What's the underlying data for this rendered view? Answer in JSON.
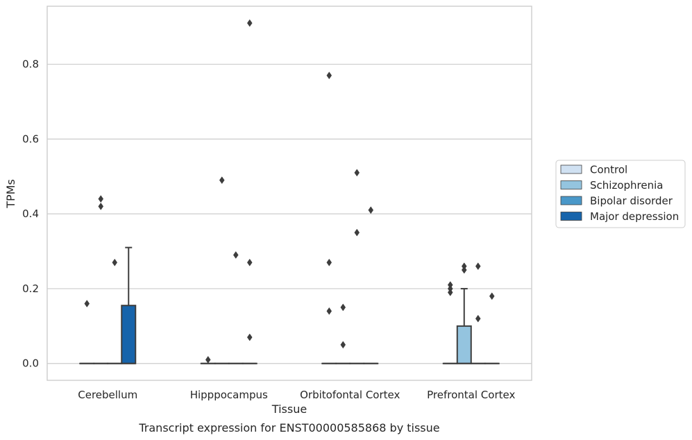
{
  "chart_data": {
    "type": "box",
    "categories": [
      "Cerebellum",
      "Hipppocampus",
      "Orbitofontal Cortex",
      "Prefrontal Cortex"
    ],
    "xlabel": "Tissue",
    "ylabel": "TPMs",
    "caption": "Transcript expression for ENST00000585868 by tissue",
    "ylim": [
      -0.045,
      0.955
    ],
    "yticks": [
      0.0,
      0.2,
      0.4,
      0.6,
      0.8
    ],
    "ytick_labels": [
      "0.0",
      "0.2",
      "0.4",
      "0.6",
      "0.8"
    ],
    "grid": "horizontal",
    "legend_placement": "right",
    "series": [
      {
        "name": "Control",
        "color": "#d0e1f2",
        "boxes": [
          {
            "q1": 0,
            "median": 0,
            "q3": 0,
            "whisker_low": 0,
            "whisker_high": 0,
            "outliers": [
              0.16
            ]
          },
          {
            "q1": 0,
            "median": 0,
            "q3": 0,
            "whisker_low": 0,
            "whisker_high": 0,
            "outliers": [
              0.01
            ]
          },
          {
            "q1": 0,
            "median": 0,
            "q3": 0,
            "whisker_low": 0,
            "whisker_high": 0,
            "outliers": [
              0.77,
              0.27,
              0.14
            ]
          },
          {
            "q1": 0,
            "median": 0,
            "q3": 0,
            "whisker_low": 0,
            "whisker_high": 0,
            "outliers": [
              0.21,
              0.2,
              0.19
            ]
          }
        ]
      },
      {
        "name": "Schizophrenia",
        "color": "#94c4df",
        "boxes": [
          {
            "q1": 0,
            "median": 0,
            "q3": 0,
            "whisker_low": 0,
            "whisker_high": 0,
            "outliers": [
              0.44,
              0.42
            ]
          },
          {
            "q1": 0,
            "median": 0,
            "q3": 0,
            "whisker_low": 0,
            "whisker_high": 0,
            "outliers": [
              0.49
            ]
          },
          {
            "q1": 0,
            "median": 0,
            "q3": 0,
            "whisker_low": 0,
            "whisker_high": 0,
            "outliers": [
              0.15,
              0.05
            ]
          },
          {
            "q1": 0,
            "median": 0,
            "q3": 0.1,
            "whisker_low": 0,
            "whisker_high": 0.2,
            "outliers": [
              0.26,
              0.25
            ]
          }
        ]
      },
      {
        "name": "Bipolar disorder",
        "color": "#4a98c9",
        "boxes": [
          {
            "q1": 0,
            "median": 0,
            "q3": 0,
            "whisker_low": 0,
            "whisker_high": 0,
            "outliers": [
              0.27
            ]
          },
          {
            "q1": 0,
            "median": 0,
            "q3": 0,
            "whisker_low": 0,
            "whisker_high": 0,
            "outliers": [
              0.29
            ]
          },
          {
            "q1": 0,
            "median": 0,
            "q3": 0,
            "whisker_low": 0,
            "whisker_high": 0,
            "outliers": [
              0.51,
              0.35
            ]
          },
          {
            "q1": 0,
            "median": 0,
            "q3": 0,
            "whisker_low": 0,
            "whisker_high": 0,
            "outliers": [
              0.26,
              0.12
            ]
          }
        ]
      },
      {
        "name": "Major depression",
        "color": "#1764ab",
        "boxes": [
          {
            "q1": 0,
            "median": 0,
            "q3": 0.155,
            "whisker_low": 0,
            "whisker_high": 0.31,
            "outliers": []
          },
          {
            "q1": 0,
            "median": 0,
            "q3": 0,
            "whisker_low": 0,
            "whisker_high": 0,
            "outliers": [
              0.91,
              0.27,
              0.07
            ]
          },
          {
            "q1": 0,
            "median": 0,
            "q3": 0,
            "whisker_low": 0,
            "whisker_high": 0,
            "outliers": [
              0.41
            ]
          },
          {
            "q1": 0,
            "median": 0,
            "q3": 0,
            "whisker_low": 0,
            "whisker_high": 0,
            "outliers": [
              0.18
            ]
          }
        ]
      }
    ]
  }
}
